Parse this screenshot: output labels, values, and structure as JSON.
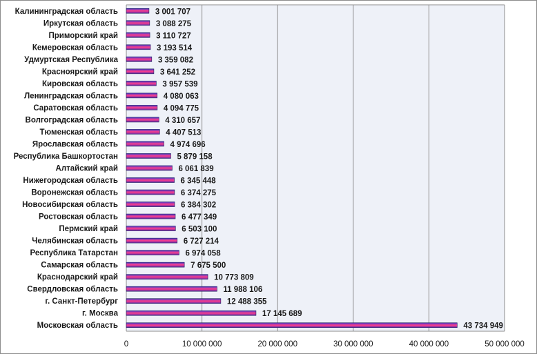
{
  "chart_data": {
    "type": "bar",
    "orientation": "horizontal",
    "categories": [
      "Калининградская область",
      "Иркутская область",
      "Приморский край",
      "Кемеровская область",
      "Удмуртская Республика",
      "Красноярский край",
      "Кировская область",
      "Ленинградская область",
      "Саратовская область",
      "Волгоградская область",
      "Тюменская область",
      "Ярославская область",
      "Республика Башкортостан",
      "Алтайский край",
      "Нижегородская область",
      "Воронежская область",
      "Новосибирская область",
      "Ростовская область",
      "Пермский край",
      "Челябинская область",
      "Республика Татарстан",
      "Самарская область",
      "Краснодарский край",
      "Свердловская область",
      "г. Санкт-Петербург",
      "г. Москва",
      "Московская область"
    ],
    "values": [
      3001707,
      3088275,
      3110727,
      3193514,
      3359082,
      3641252,
      3957539,
      4080063,
      4094775,
      4310657,
      4407513,
      4974696,
      5879158,
      6061839,
      6345448,
      6374275,
      6384302,
      6477349,
      6503100,
      6727214,
      6974058,
      7675500,
      10773809,
      11988106,
      12488355,
      17145689,
      43734949
    ],
    "value_labels": [
      "3 001 707",
      "3 088 275",
      "3 110 727",
      "3 193 514",
      "3 359 082",
      "3 641 252",
      "3 957 539",
      "4 080 063",
      "4 094 775",
      "4 310 657",
      "4 407 513",
      "4 974 696",
      "5 879 158",
      "6 061 839",
      "6 345 448",
      "6 374 275",
      "6 384 302",
      "6 477 349",
      "6 503 100",
      "6 727 214",
      "6 974 058",
      "7 675 500",
      "10 773 809",
      "11 988 106",
      "12 488 355",
      "17 145 689",
      "43 734 949"
    ],
    "xlim": [
      0,
      50000000
    ],
    "x_ticks": [
      0,
      10000000,
      20000000,
      30000000,
      40000000,
      50000000
    ],
    "x_tick_labels": [
      "0",
      "10 000 000",
      "20 000 000",
      "30 000 000",
      "40 000 000",
      "50 000 000"
    ],
    "grid": "vertical",
    "legend": "none",
    "colors": {
      "plot_background": "#eef1f8",
      "gridline": "#8c8c8c",
      "bar_top": "#3b3bc8",
      "bar_mid": "#ff3d8d",
      "bar_bottom": "#5b2ea8",
      "bar_outline": "#1f1f60",
      "frame": "#8c8c8c"
    }
  }
}
